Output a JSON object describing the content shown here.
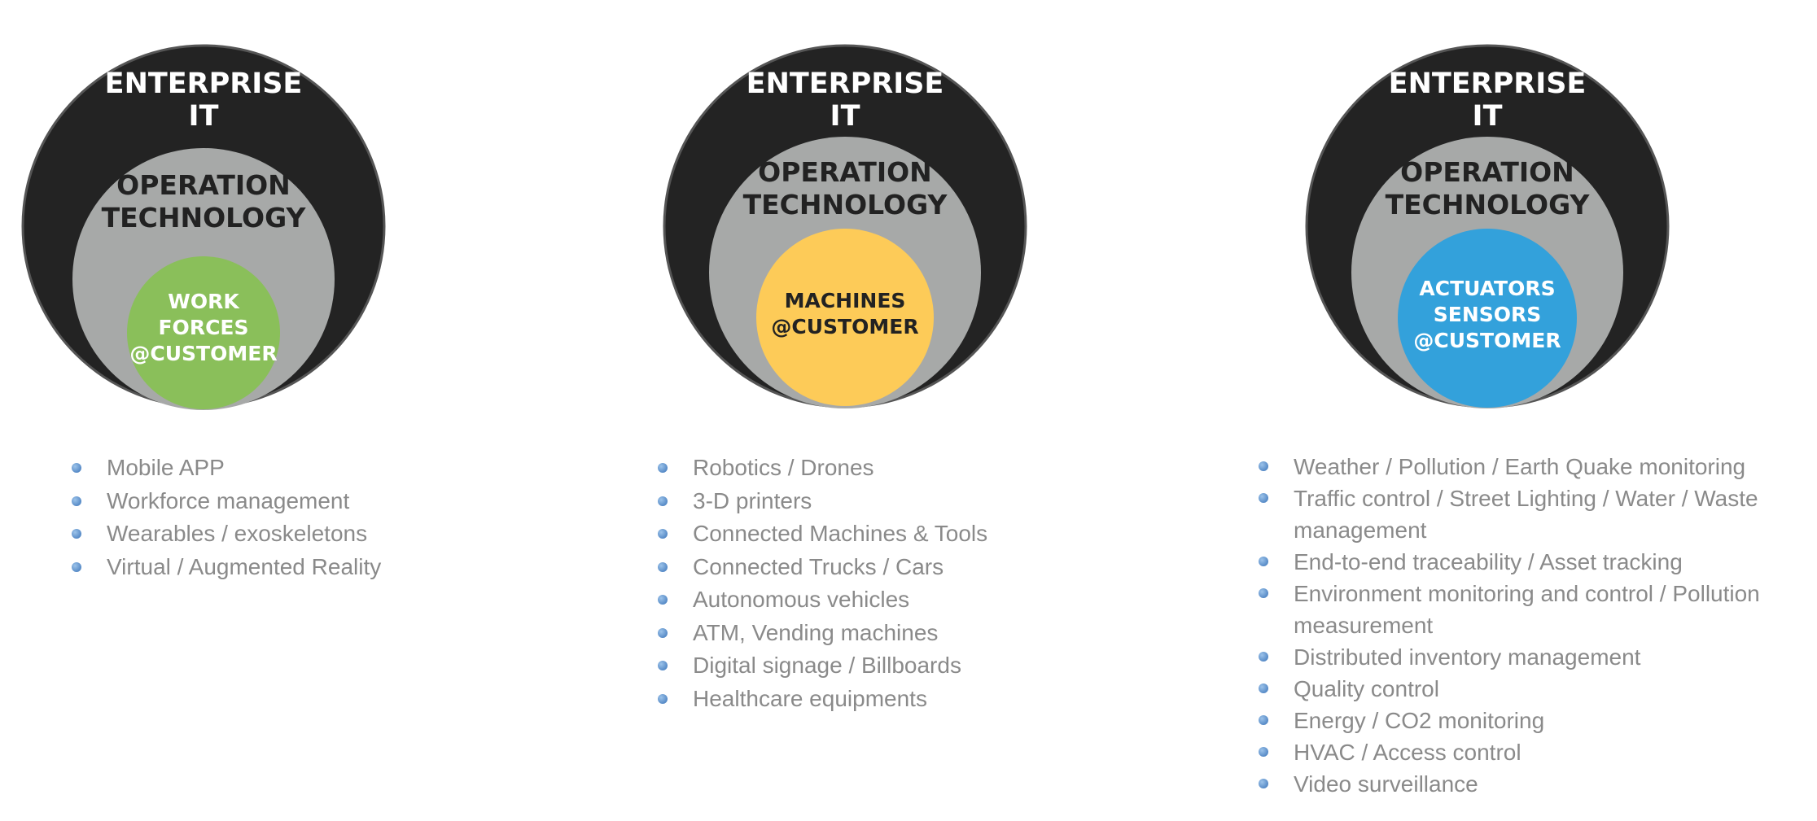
{
  "colors": {
    "outer": "#232323",
    "middle": "#a7a9a8",
    "green": "#8abf5a",
    "yellow": "#fdcb58",
    "blue": "#33a1db"
  },
  "diagrams": [
    {
      "outer_label": [
        "ENTERPRISE",
        "IT"
      ],
      "middle_label": [
        "OPERATION",
        "TECHNOLOGY"
      ],
      "inner_label": [
        "WORK",
        "FORCES",
        "@CUSTOMER"
      ],
      "inner_color": "green",
      "items": [
        "Mobile APP",
        "Workforce management",
        "Wearables / exoskeletons",
        "Virtual / Augmented Reality"
      ]
    },
    {
      "outer_label": [
        "ENTERPRISE",
        "IT"
      ],
      "middle_label": [
        "OPERATION",
        "TECHNOLOGY"
      ],
      "inner_label": [
        "MACHINES",
        "@CUSTOMER"
      ],
      "inner_color": "yellow",
      "items": [
        "Robotics / Drones",
        "3-D printers",
        "Connected Machines & Tools",
        "Connected Trucks / Cars",
        "Autonomous vehicles",
        "ATM, Vending machines",
        "Digital signage / Billboards",
        "Healthcare equipments"
      ]
    },
    {
      "outer_label": [
        "ENTERPRISE",
        "IT"
      ],
      "middle_label": [
        "OPERATION",
        "TECHNOLOGY"
      ],
      "inner_label": [
        "ACTUATORS",
        "SENSORS",
        "@CUSTOMER"
      ],
      "inner_color": "blue",
      "items": [
        "Weather / Pollution / Earth Quake monitoring",
        "Traffic control / Street Lighting / Water / Waste management",
        "End-to-end traceability / Asset tracking",
        "Environment monitoring and control / Pollution measurement",
        "Distributed inventory management",
        "Quality control",
        "Energy / CO2 monitoring",
        "HVAC / Access control",
        "Video surveillance"
      ]
    }
  ]
}
